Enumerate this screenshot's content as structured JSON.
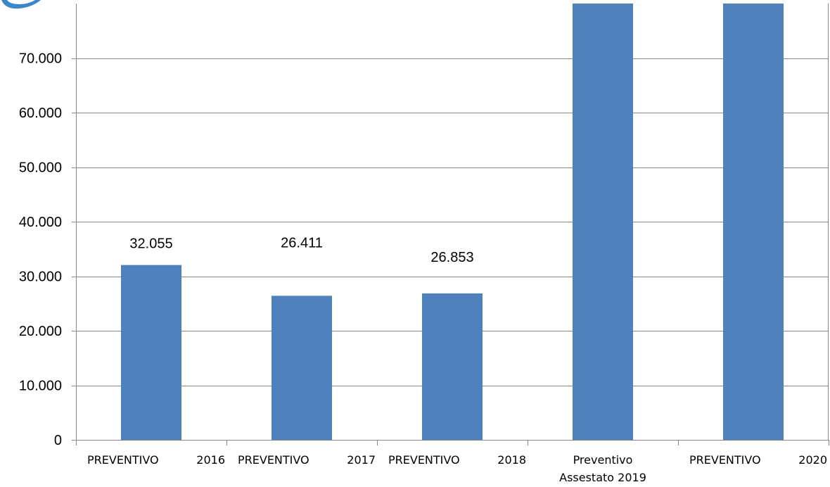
{
  "chart_data": {
    "type": "bar",
    "categories": [
      [
        "PREVENTIVO",
        "2016"
      ],
      [
        "PREVENTIVO",
        "2017"
      ],
      [
        "PREVENTIVO",
        "2018"
      ],
      [
        "Preventivo",
        "Assestato 2019"
      ],
      [
        "PREVENTIVO",
        "2020"
      ]
    ],
    "values": [
      32055,
      26411,
      26853,
      null,
      null
    ],
    "data_labels": [
      "32.055",
      "26.411",
      "26.853",
      "",
      ""
    ],
    "bars_exceed_top": [
      false,
      false,
      false,
      true,
      true
    ],
    "y_ticks": [
      {
        "value": 0,
        "label": "0"
      },
      {
        "value": 10000,
        "label": "10.000"
      },
      {
        "value": 20000,
        "label": "20.000"
      },
      {
        "value": 30000,
        "label": "30.000"
      },
      {
        "value": 40000,
        "label": "40.000"
      },
      {
        "value": 50000,
        "label": "50.000"
      },
      {
        "value": 60000,
        "label": "60.000"
      },
      {
        "value": 70000,
        "label": "70.000"
      }
    ],
    "ylim": [
      0,
      80000
    ],
    "title": "",
    "xlabel": "",
    "ylabel": "",
    "grid": true,
    "colors": {
      "bar": "#4f81bd",
      "grid": "#868686",
      "axis": "#868686",
      "corner_icon": "#3a86c8"
    }
  }
}
